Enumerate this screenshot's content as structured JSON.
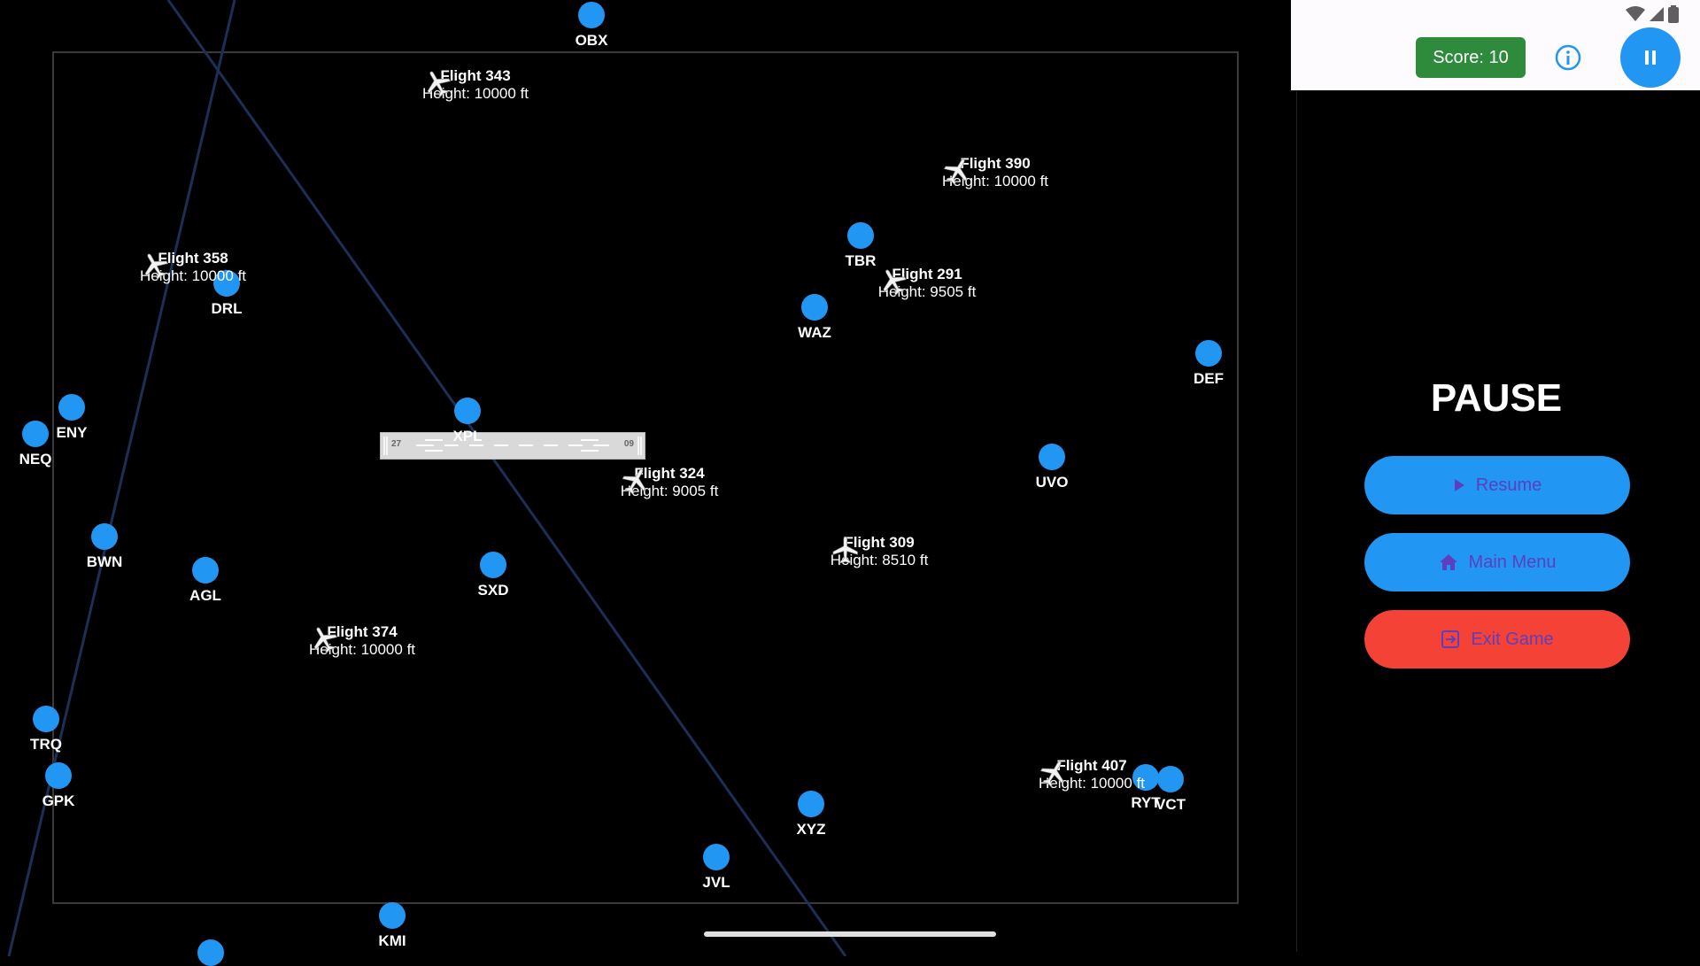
{
  "game": {
    "waypoints": [
      {
        "code": "OBX"
      },
      {
        "code": "DRL"
      },
      {
        "code": "TBR"
      },
      {
        "code": "WAZ"
      },
      {
        "code": "DEF"
      },
      {
        "code": "ENY"
      },
      {
        "code": "NEQ"
      },
      {
        "code": "XPL"
      },
      {
        "code": "UVO"
      },
      {
        "code": "BWN"
      },
      {
        "code": "AGL"
      },
      {
        "code": "SXD"
      },
      {
        "code": "TRQ"
      },
      {
        "code": "GPK"
      },
      {
        "code": "RYT"
      },
      {
        "code": "VCT"
      },
      {
        "code": "XYZ"
      },
      {
        "code": "JVL"
      },
      {
        "code": "KMI"
      },
      {
        "code": ""
      }
    ],
    "flights": [
      {
        "name": "Flight 343",
        "height": "Height: 10000 ft"
      },
      {
        "name": "Flight 390",
        "height": "Height: 10000 ft"
      },
      {
        "name": "Flight 358",
        "height": "Height: 10000 ft"
      },
      {
        "name": "Flight 291",
        "height": "Height: 9505 ft"
      },
      {
        "name": "Flight 324",
        "height": "Height: 9005 ft"
      },
      {
        "name": "Flight 309",
        "height": "Height: 8510 ft"
      },
      {
        "name": "Flight 374",
        "height": "Height: 10000 ft"
      },
      {
        "name": "Flight 407",
        "height": "Height: 10000 ft"
      }
    ],
    "runway": {
      "number_left": "27",
      "number_right": "09"
    },
    "colors": {
      "waypoint": "#2196F3",
      "route": "#1c2f55",
      "runway": "#d9d9d9"
    }
  },
  "header": {
    "score_label": "Score: 10",
    "info_icon": "info-icon",
    "pause_icon": "pause-icon",
    "status_icons": [
      "wifi-icon",
      "signal-icon",
      "battery-icon"
    ]
  },
  "pause_menu": {
    "title": "PAUSE",
    "resume_label": "Resume",
    "main_menu_label": "Main Menu",
    "exit_label": "Exit Game",
    "colors": {
      "primary": "#2196F3",
      "danger": "#f44336",
      "score": "#2e8b3b"
    }
  }
}
